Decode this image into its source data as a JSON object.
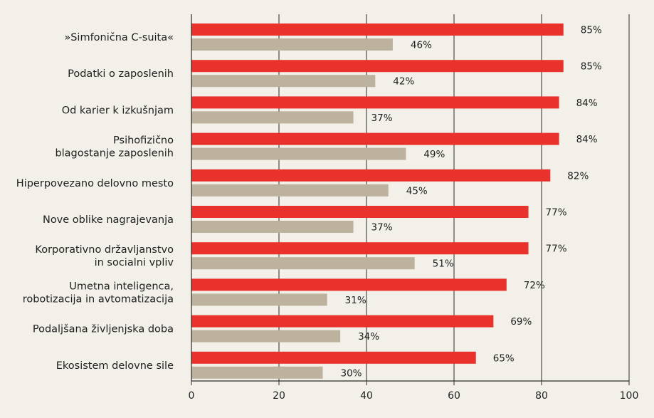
{
  "chart_data": {
    "type": "bar",
    "orientation": "horizontal",
    "categories": [
      "»Simfonična C-suita«",
      "Podatki o zaposlenih",
      "Od karier k izkušnjam",
      "Psihofizično blagostanje zaposlenih",
      "Hiperpovezano delovno mesto",
      "Nove oblike nagrajevanja",
      "Korporativno državljanstvo in socialni vpliv",
      "Umetna inteligenca, robotizacija in avtomatizacija",
      "Podaljšana življenjska doba",
      "Ekosistem delovne sile"
    ],
    "category_lines": [
      [
        "»Simfonična C-suita«"
      ],
      [
        "Podatki o zaposlenih"
      ],
      [
        "Od karier k izkušnjam"
      ],
      [
        "Psihofizično",
        "blagostanje zaposlenih"
      ],
      [
        "Hiperpovezano delovno mesto"
      ],
      [
        "Nove oblike nagrajevanja"
      ],
      [
        "Korporativno državljanstvo",
        "in socialni vpliv"
      ],
      [
        "Umetna inteligenca,",
        "robotizacija in avtomatizacija"
      ],
      [
        "Podaljšana življenjska doba"
      ],
      [
        "Ekosistem delovne sile"
      ]
    ],
    "series": [
      {
        "values": [
          85,
          85,
          84,
          84,
          82,
          77,
          77,
          72,
          69,
          65
        ],
        "color": "#e8322b"
      },
      {
        "values": [
          46,
          42,
          37,
          49,
          45,
          37,
          51,
          31,
          34,
          30
        ],
        "color": "#bdb29d"
      }
    ],
    "value_suffix": "%",
    "xlim": [
      0,
      100
    ],
    "xticks": [
      0,
      20,
      40,
      60,
      80,
      100
    ],
    "grid": "vertical",
    "grid_color": "#2a2a2a",
    "background": "#f3f0e9"
  }
}
